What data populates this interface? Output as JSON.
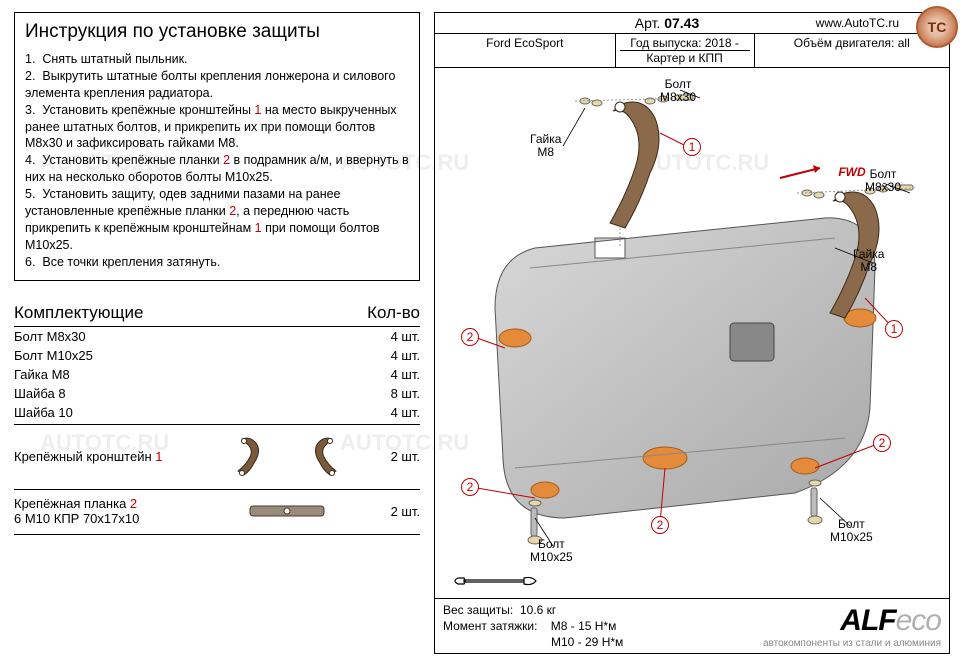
{
  "watermarks": [
    "AUTOTC.RU",
    "AUTOTC.RU",
    "AUTOTC.RU",
    "AUTOTC.RU",
    "AUTOTC.RU",
    "AUTOTC.RU"
  ],
  "badge": "TC",
  "instructions": {
    "title": "Инструкция по установке защиты",
    "steps_html": "1.  Снять штатный пыльник.<br>2.  Выкрутить штатные болты крепления лонжерона и силового элемента крепления радиатора.<br>3.  Установить крепёжные кронштейны <span class='red'>1</span> на место выкрученных ранее штатных болтов, и прикрепить их при помощи болтов М8х30 и зафиксировать гайками М8.<br>4.  Установить крепёжные планки <span class='red'>2</span> в подрамник а/м, и ввернуть в них на несколько оборотов болты М10х25.<br>5.  Установить защиту, одев задними пазами  на ранее установленные крепёжные планки <span class='red'>2</span>, а переднюю часть прикрепить к крепёжным кронштейнам <span class='red'>1</span> при помощи болтов М10х25.<br>6.  Все точки крепления затянуть."
  },
  "components": {
    "header_left": "Комплектующие",
    "header_right": "Кол-во",
    "rows": [
      {
        "name": "Болт М8х30",
        "qty": "4 шт."
      },
      {
        "name": "Болт М10х25",
        "qty": "4 шт."
      },
      {
        "name": "Гайка М8",
        "qty": "4 шт."
      },
      {
        "name": "Шайба 8",
        "qty": "8 шт."
      },
      {
        "name": "Шайба 10",
        "qty": "4 шт."
      }
    ],
    "bracket": {
      "label": "Крепёжный кронштейн",
      "num": "1",
      "qty": "2 шт."
    },
    "plank": {
      "label": "Крепёжная планка",
      "num": "2",
      "sub": "6 М10 КПР 70х17х10",
      "qty": "2 шт."
    }
  },
  "spec": {
    "article_label": "Арт.",
    "article": "07.43",
    "site": "www.AutoTC.ru",
    "model": "Ford EcoSport",
    "year_label": "Год выпуска: 2018 -",
    "protect": "Картер и КПП",
    "engine": "Объём двигателя: all"
  },
  "diagram": {
    "labels": {
      "bolt_m8x30": "Болт\nМ8х30",
      "nut_m8": "Гайка\nМ8",
      "bolt_m10x25": "Болт\nМ10х25",
      "fwd": "FWD"
    },
    "colors": {
      "plate": "#bdbdbd",
      "bracket": "#8a6a4a",
      "accent": "#e38b3a",
      "washer": "#e8d8a8",
      "red": "#c00000"
    }
  },
  "footer": {
    "weight_label": "Вес защиты:",
    "weight": "10.6 кг",
    "torque_label": "Момент затяжки:",
    "torque1": "М8 - 15 Н*м",
    "torque2": "М10 - 29 Н*м"
  },
  "brand": {
    "name": "ALF",
    "suffix": "eco",
    "tag": "автокомпоненты из стали и алюминия"
  }
}
